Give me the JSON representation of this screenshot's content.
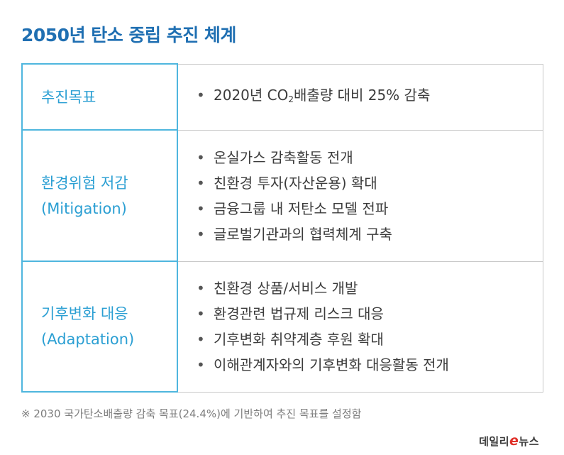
{
  "title": "2050년 탄소 중립 추진 체계",
  "rows": [
    {
      "label_line1": "추진목표",
      "label_line2": "",
      "items": []
    },
    {
      "label_line1": "환경위험 저감",
      "label_line2": "(Mitigation)",
      "items": [
        "온실가스 감축활동 전개",
        "친환경 투자(자산운용) 확대",
        "금융그룹 내 저탄소 모델 전파",
        "글로벌기관과의 협력체계 구축"
      ]
    },
    {
      "label_line1": "기후변화 대응",
      "label_line2": "(Adaptation)",
      "items": [
        "친환경 상품/서비스 개발",
        "환경관련 법규제 리스크 대응",
        "기후변화 취약계층 후원 확대",
        "이해관계자와의 기후변화 대응활동 전개"
      ]
    }
  ],
  "goal_item": {
    "before": "2020년 CO",
    "subscript": "2",
    "after": "배출량 대비 25% 감축"
  },
  "bullet": "•",
  "footnote": "※ 2030 국가탄소배출량 감축 목표(24.4%)에 기반하여 추진 목표를 설정함",
  "logo": {
    "part1": "데일리",
    "e": "e",
    "part2": "뉴스"
  },
  "colors": {
    "title": "#1f6fb2",
    "label_text": "#2b9fd3",
    "label_border": "#4fb6de",
    "content_border": "#c9c9c9"
  }
}
